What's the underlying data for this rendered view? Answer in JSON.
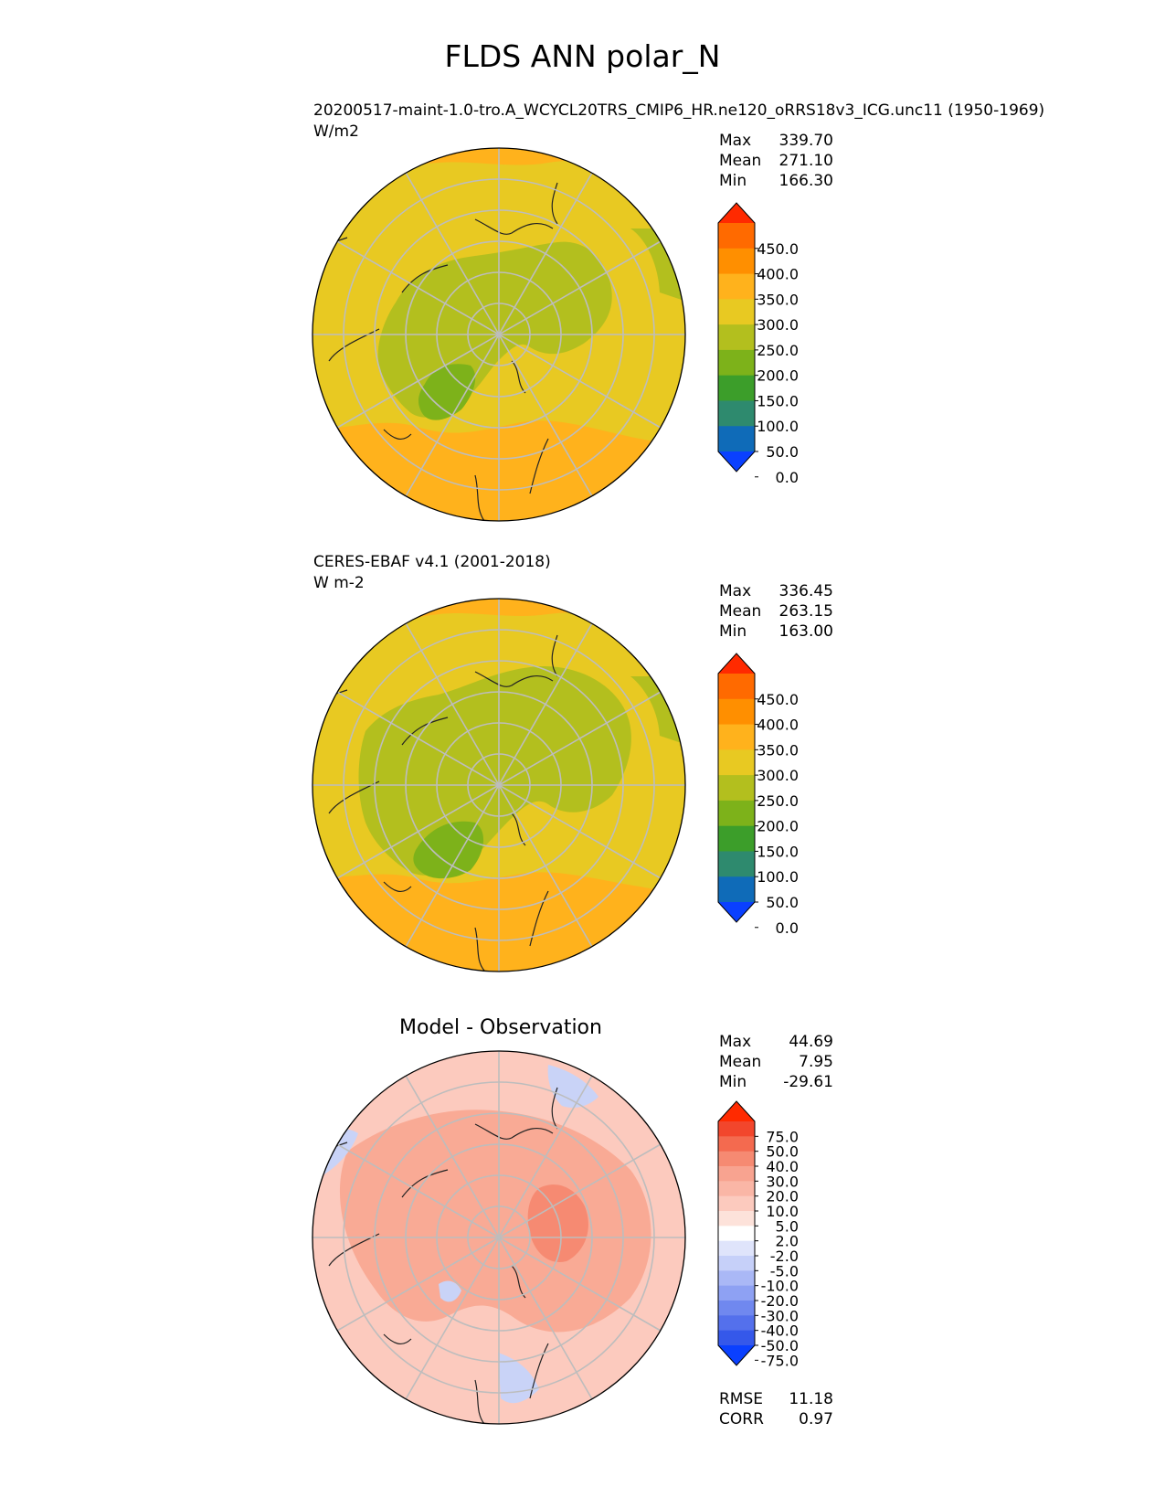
{
  "figure": {
    "title": "FLDS ANN polar_N"
  },
  "chart_data": [
    {
      "type": "heatmap",
      "projection": "north-polar-stereographic",
      "title": "20200517-maint-1.0-tro.A_WCYCL20TRS_CMIP6_HR.ne120_oRRS18v3_ICG.unc11 (1950-1969)",
      "units": "W/m2",
      "stats": [
        {
          "label": "Max",
          "value": "339.70"
        },
        {
          "label": "Mean",
          "value": "271.10"
        },
        {
          "label": "Min",
          "value": "166.30"
        }
      ],
      "colorbar": {
        "ticks": [
          "450.0",
          "400.0",
          "350.0",
          "300.0",
          "250.0",
          "200.0",
          "150.0",
          "100.0",
          "50.0",
          "0.0"
        ],
        "colors": [
          "#ff2a00",
          "#ff6a00",
          "#ff8f00",
          "#ffb21c",
          "#e8c922",
          "#b3bf1e",
          "#7db21a",
          "#3c9e2a",
          "#2e8a6e",
          "#0f6bb8",
          "#0a40ff"
        ]
      }
    },
    {
      "type": "heatmap",
      "projection": "north-polar-stereographic",
      "title": "CERES-EBAF v4.1 (2001-2018)",
      "units": "W m-2",
      "stats": [
        {
          "label": "Max",
          "value": "336.45"
        },
        {
          "label": "Mean",
          "value": "263.15"
        },
        {
          "label": "Min",
          "value": "163.00"
        }
      ],
      "colorbar": {
        "ticks": [
          "450.0",
          "400.0",
          "350.0",
          "300.0",
          "250.0",
          "200.0",
          "150.0",
          "100.0",
          "50.0",
          "0.0"
        ],
        "colors": [
          "#ff2a00",
          "#ff6a00",
          "#ff8f00",
          "#ffb21c",
          "#e8c922",
          "#b3bf1e",
          "#7db21a",
          "#3c9e2a",
          "#2e8a6e",
          "#0f6bb8",
          "#0a40ff"
        ]
      }
    },
    {
      "type": "heatmap",
      "projection": "north-polar-stereographic",
      "title": "Model - Observation",
      "stats": [
        {
          "label": "Max",
          "value": "44.69"
        },
        {
          "label": "Mean",
          "value": "7.95"
        },
        {
          "label": "Min",
          "value": "-29.61"
        }
      ],
      "metrics": [
        {
          "label": "RMSE",
          "value": "11.18"
        },
        {
          "label": "CORR",
          "value": "0.97"
        }
      ],
      "colorbar": {
        "ticks": [
          "75.0",
          "50.0",
          "40.0",
          "30.0",
          "20.0",
          "10.0",
          "5.0",
          "2.0",
          "-2.0",
          "-5.0",
          "-10.0",
          "-20.0",
          "-30.0",
          "-40.0",
          "-50.0",
          "-75.0"
        ],
        "colors": [
          "#ff2a00",
          "#f2462c",
          "#f46a4f",
          "#f68a72",
          "#f8a390",
          "#fab6a6",
          "#fccabe",
          "#fde2da",
          "#ffffff",
          "#dfe4fb",
          "#c6d0f9",
          "#aab8f6",
          "#8ea1f3",
          "#7088ef",
          "#5470ec",
          "#3558ea",
          "#0a40ff"
        ]
      },
      "colors": {
        "positive": "#f9aa95",
        "negative": "#c9d3f7"
      }
    }
  ],
  "colors": {
    "ocean_high": "#ffb21c",
    "mid": "#e8c922",
    "land_low": "#b3bf1e",
    "lowest": "#7db21a",
    "coast": "#222222",
    "grid": "#bdbdbd"
  }
}
